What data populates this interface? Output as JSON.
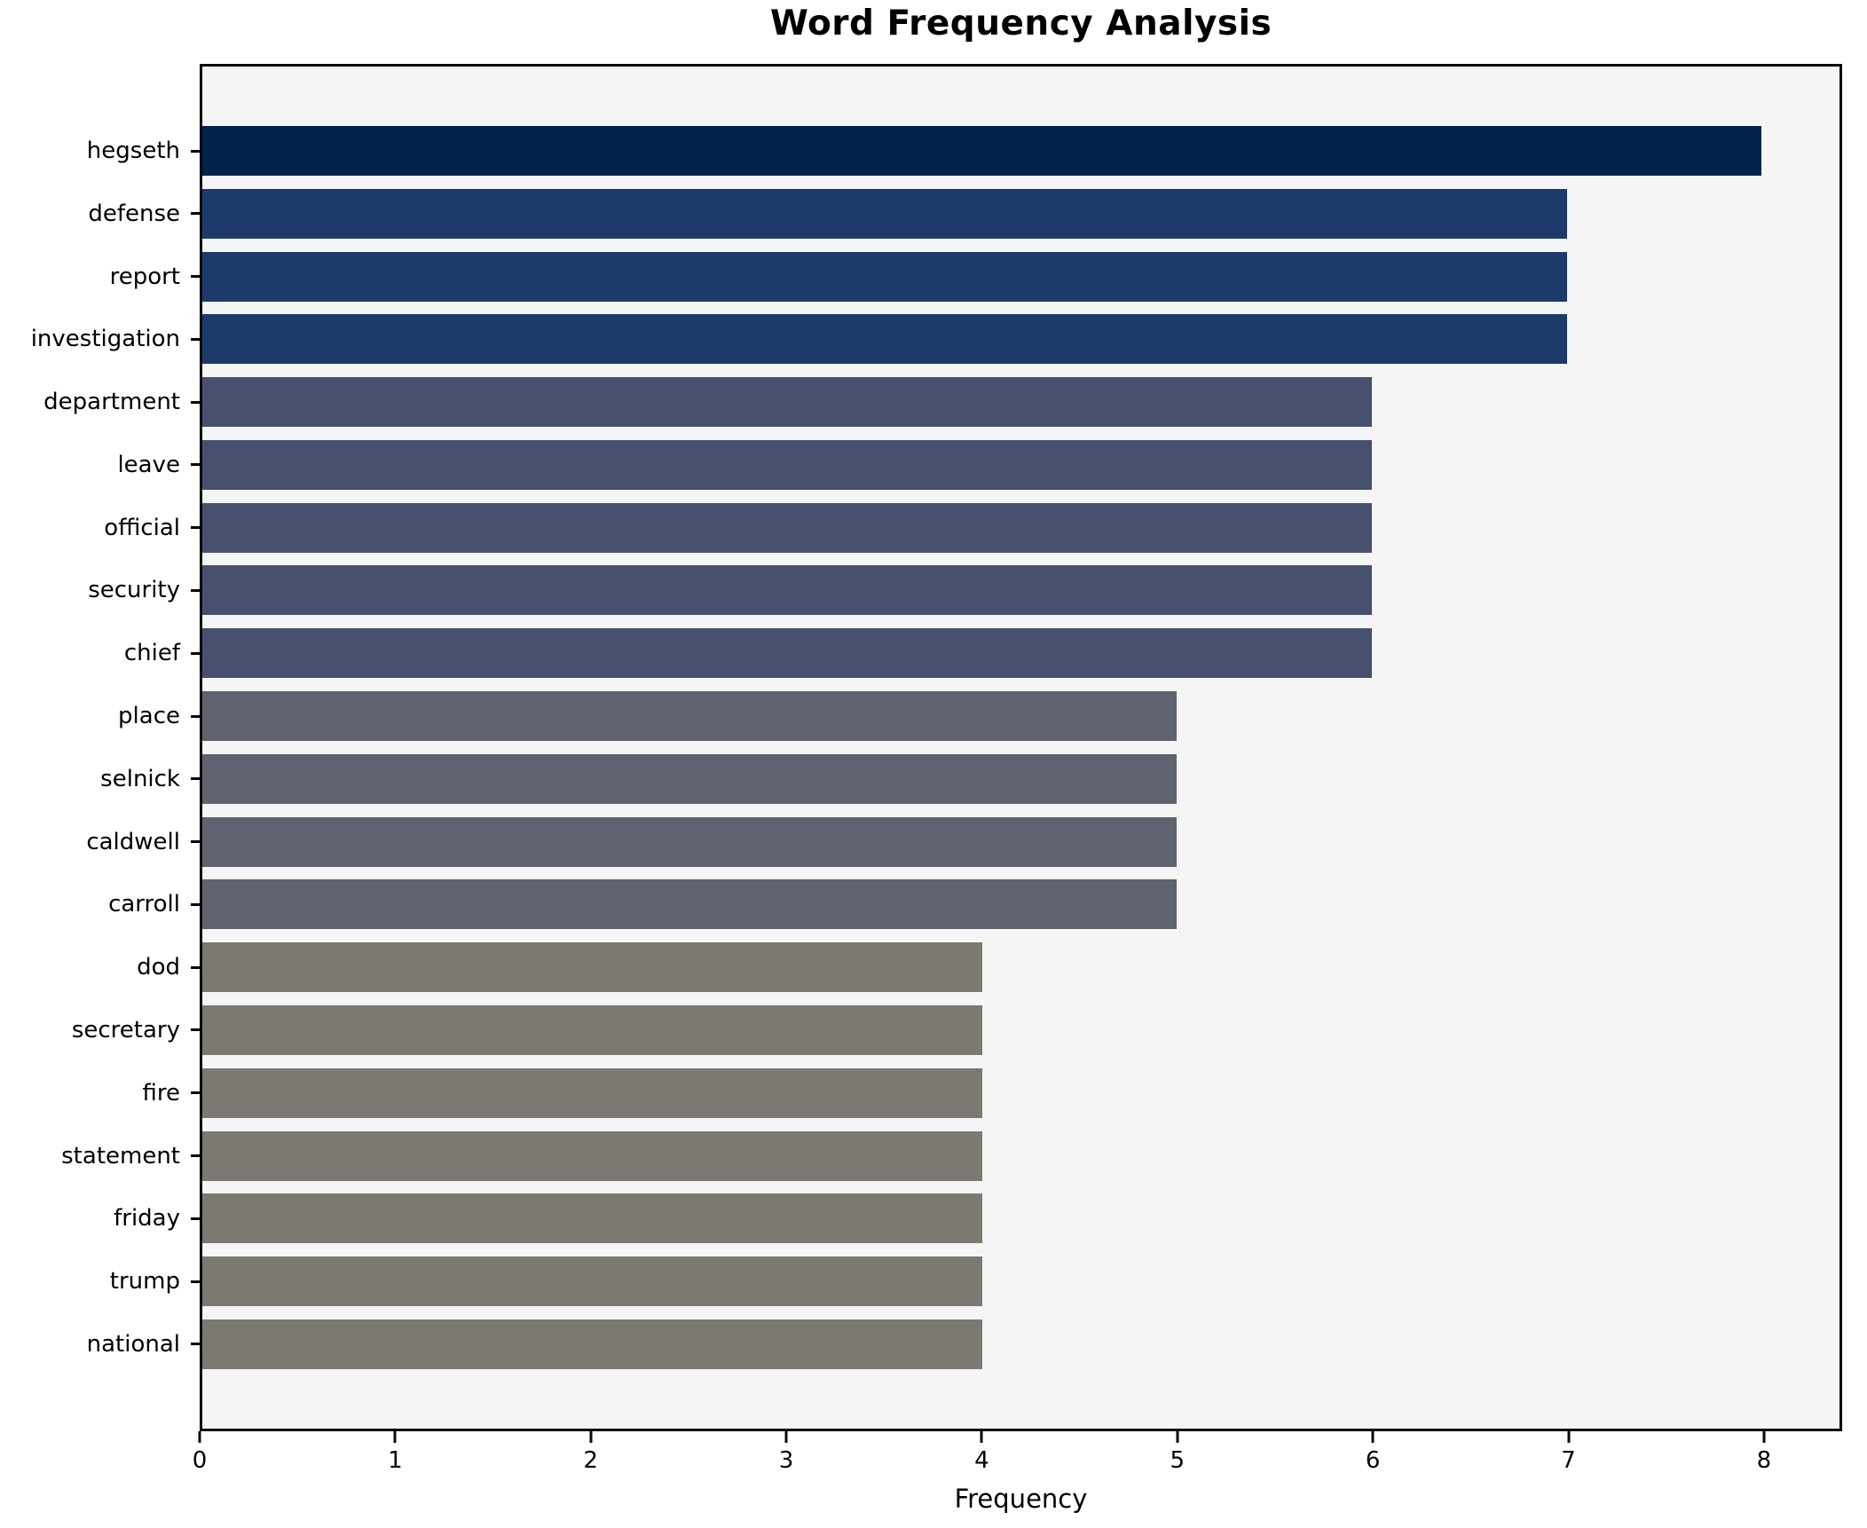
{
  "chart_data": {
    "type": "bar",
    "orientation": "horizontal",
    "title": "Word Frequency Analysis",
    "xlabel": "Frequency",
    "ylabel": "",
    "categories": [
      "hegseth",
      "defense",
      "report",
      "investigation",
      "department",
      "leave",
      "official",
      "security",
      "chief",
      "place",
      "selnick",
      "caldwell",
      "carroll",
      "dod",
      "secretary",
      "fire",
      "statement",
      "friday",
      "trump",
      "national"
    ],
    "values": [
      8,
      7,
      7,
      7,
      6,
      6,
      6,
      6,
      6,
      5,
      5,
      5,
      5,
      4,
      4,
      4,
      4,
      4,
      4,
      4
    ],
    "bar_colors": [
      "#02234d",
      "#1d3a6b",
      "#1d3a6b",
      "#1d3a6b",
      "#46506f",
      "#46506f",
      "#46506f",
      "#46506f",
      "#46506f",
      "#5f626f",
      "#5f626f",
      "#5f626f",
      "#5f626f",
      "#7b7971",
      "#7b7971",
      "#7b7971",
      "#7b7971",
      "#7b7971",
      "#7b7971",
      "#7b7971"
    ],
    "xticks": [
      0,
      1,
      2,
      3,
      4,
      5,
      6,
      7,
      8
    ],
    "xlim": [
      0,
      8.4
    ],
    "grid": false,
    "legend_position": "none",
    "plot_background": "#f5f5f5",
    "figure_background": "#ffffff",
    "spine_color": "#0a0a0a",
    "text_color": "#000000"
  }
}
